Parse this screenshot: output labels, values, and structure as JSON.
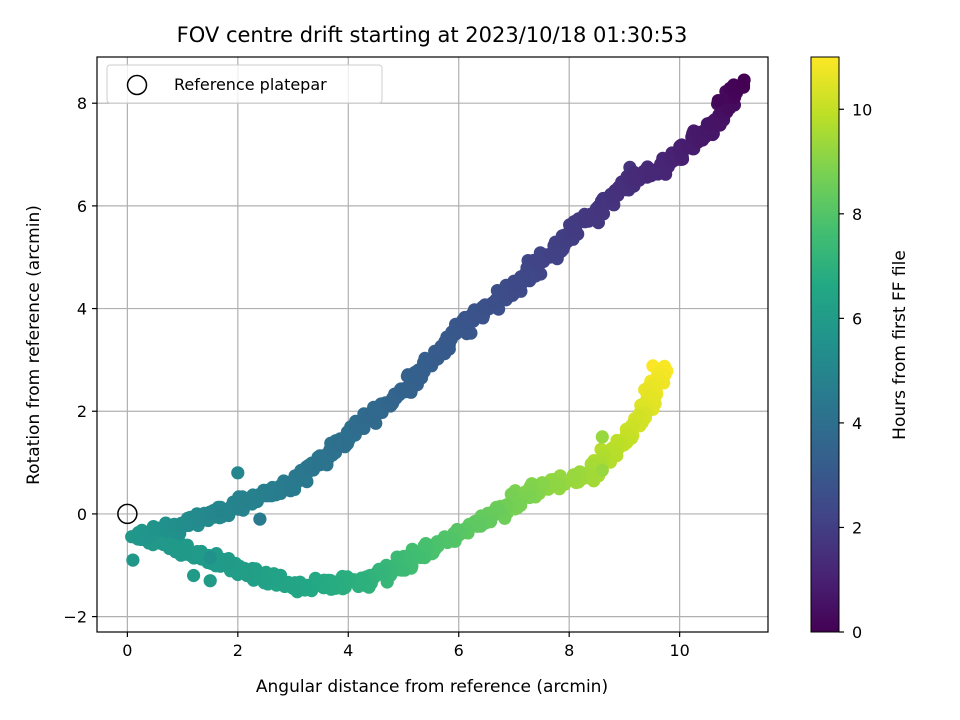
{
  "chart_data": {
    "type": "scatter",
    "title": "FOV centre drift starting at 2023/10/18 01:30:53",
    "xlabel": "Angular distance from reference (arcmin)",
    "ylabel": "Rotation from reference (arcmin)",
    "xlim": [
      -0.55,
      11.6
    ],
    "ylim": [
      -2.3,
      8.9
    ],
    "xticks": [
      0,
      2,
      4,
      6,
      8,
      10
    ],
    "yticks": [
      -2,
      0,
      2,
      4,
      6,
      8
    ],
    "grid": true,
    "legend": {
      "placement": "top-left",
      "entries": [
        "Reference platepar"
      ]
    },
    "reference_point": {
      "x": 0,
      "y": 0
    },
    "colorbar": {
      "label": "Hours from first FF file",
      "range": [
        0,
        11
      ],
      "ticks": [
        0,
        2,
        4,
        6,
        8,
        10
      ],
      "colormap": "viridis"
    },
    "trajectory": [
      {
        "t": 0.0,
        "x": 11.1,
        "y": 8.4
      },
      {
        "t": 0.5,
        "x": 10.8,
        "y": 7.8
      },
      {
        "t": 1.0,
        "x": 10.0,
        "y": 7.0
      },
      {
        "t": 1.5,
        "x": 9.0,
        "y": 6.4
      },
      {
        "t": 2.0,
        "x": 8.0,
        "y": 5.4
      },
      {
        "t": 2.5,
        "x": 7.0,
        "y": 4.4
      },
      {
        "t": 3.0,
        "x": 6.0,
        "y": 3.6
      },
      {
        "t": 3.5,
        "x": 5.0,
        "y": 2.4
      },
      {
        "t": 4.0,
        "x": 4.0,
        "y": 1.5
      },
      {
        "t": 4.5,
        "x": 3.0,
        "y": 0.6
      },
      {
        "t": 5.0,
        "x": 1.8,
        "y": 0.1
      },
      {
        "t": 5.5,
        "x": 0.8,
        "y": -0.3
      },
      {
        "t": 5.8,
        "x": 0.2,
        "y": -0.4
      },
      {
        "t": 6.0,
        "x": 1.8,
        "y": -1.0
      },
      {
        "t": 6.5,
        "x": 3.0,
        "y": -1.4
      },
      {
        "t": 7.0,
        "x": 4.2,
        "y": -1.3
      },
      {
        "t": 7.5,
        "x": 5.0,
        "y": -1.0
      },
      {
        "t": 8.0,
        "x": 5.8,
        "y": -0.5
      },
      {
        "t": 8.5,
        "x": 6.7,
        "y": 0.0
      },
      {
        "t": 9.0,
        "x": 7.4,
        "y": 0.5
      },
      {
        "t": 9.5,
        "x": 8.4,
        "y": 0.8
      },
      {
        "t": 10.0,
        "x": 9.0,
        "y": 1.4
      },
      {
        "t": 10.5,
        "x": 9.4,
        "y": 2.1
      },
      {
        "t": 11.0,
        "x": 9.7,
        "y": 2.9
      }
    ],
    "outliers": [
      {
        "t": 5.8,
        "x": 0.1,
        "y": -0.9
      },
      {
        "t": 6.0,
        "x": 1.5,
        "y": -1.3
      },
      {
        "t": 6.0,
        "x": 1.2,
        "y": -1.2
      },
      {
        "t": 5.5,
        "x": 1.5,
        "y": -0.85
      },
      {
        "t": 4.5,
        "x": 2.4,
        "y": -0.1
      },
      {
        "t": 5.0,
        "x": 2.0,
        "y": 0.8
      },
      {
        "t": 9.3,
        "x": 8.6,
        "y": 1.5
      },
      {
        "t": 9.3,
        "x": 8.6,
        "y": 0.85
      },
      {
        "t": 1.6,
        "x": 9.1,
        "y": 6.75
      },
      {
        "t": 0.2,
        "x": 10.7,
        "y": 8.05
      }
    ]
  }
}
